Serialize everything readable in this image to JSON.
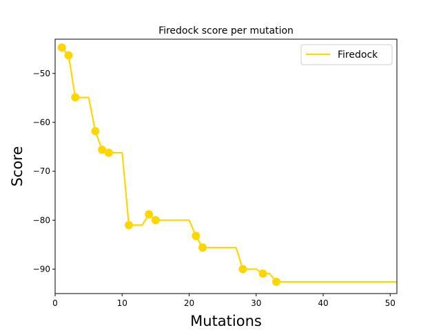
{
  "chart_data": {
    "type": "line",
    "title": "Firedock score per mutation",
    "xlabel": "Mutations",
    "ylabel": "Score",
    "xlim": [
      0,
      51
    ],
    "ylim": [
      -95,
      -43
    ],
    "xticks": [
      0,
      10,
      20,
      30,
      40,
      50
    ],
    "yticks": [
      -90,
      -80,
      -70,
      -60,
      -50
    ],
    "grid": false,
    "legend_position": "top-right",
    "series": [
      {
        "name": "Firedock",
        "color": "#FFD700",
        "line": {
          "x": [
            1,
            2,
            3,
            4,
            5,
            6,
            7,
            8,
            9,
            10,
            11,
            12,
            13,
            14,
            15,
            16,
            17,
            18,
            19,
            20,
            21,
            22,
            23,
            24,
            25,
            26,
            27,
            28,
            29,
            30,
            31,
            32,
            33,
            34,
            35,
            36,
            37,
            38,
            39,
            40,
            41,
            42,
            43,
            44,
            45,
            46,
            47,
            48,
            49,
            50,
            51
          ],
          "y": [
            -44.7,
            -46.3,
            -54.9,
            -54.9,
            -54.9,
            -61.8,
            -65.6,
            -66.2,
            -66.2,
            -66.2,
            -81.0,
            -81.0,
            -81.0,
            -78.8,
            -80.0,
            -80.0,
            -80.0,
            -80.0,
            -80.0,
            -80.0,
            -83.2,
            -85.6,
            -85.6,
            -85.6,
            -85.6,
            -85.6,
            -85.6,
            -90.0,
            -90.0,
            -90.0,
            -90.9,
            -90.9,
            -92.6,
            -92.6,
            -92.6,
            -92.6,
            -92.6,
            -92.6,
            -92.6,
            -92.6,
            -92.6,
            -92.6,
            -92.6,
            -92.6,
            -92.6,
            -92.6,
            -92.6,
            -92.6,
            -92.6,
            -92.6,
            -92.6
          ]
        },
        "markers": {
          "x": [
            1,
            2,
            3,
            6,
            7,
            8,
            11,
            14,
            15,
            21,
            22,
            28,
            31,
            33
          ],
          "y": [
            -44.7,
            -46.3,
            -54.9,
            -61.8,
            -65.6,
            -66.2,
            -81.0,
            -78.8,
            -80.0,
            -83.2,
            -85.6,
            -90.0,
            -90.9,
            -92.6
          ]
        }
      }
    ]
  }
}
